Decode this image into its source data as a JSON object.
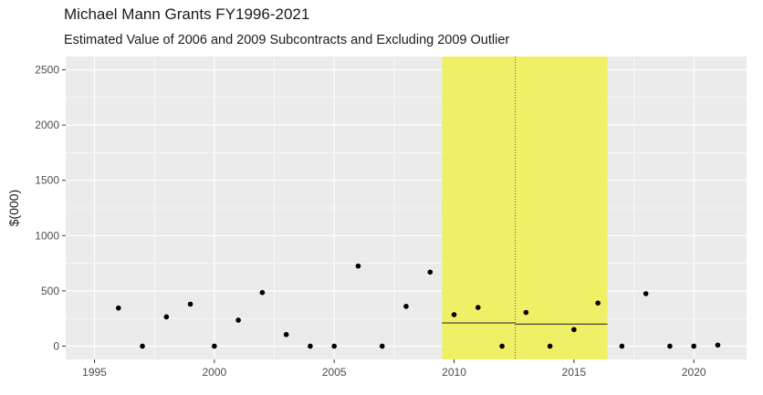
{
  "chart_data": {
    "type": "scatter",
    "title": "Michael Mann Grants FY1996-2021",
    "subtitle": "Estimated Value of 2006 and 2009 Subcontracts and Excluding 2009 Outlier",
    "xlabel": "",
    "ylabel": "$(000)",
    "xlim": [
      1993.8,
      2022.2
    ],
    "ylim": [
      -120,
      2620
    ],
    "x_ticks": [
      1995,
      2000,
      2005,
      2010,
      2015,
      2020
    ],
    "y_ticks": [
      0,
      500,
      1000,
      1500,
      2000,
      2500
    ],
    "grid": true,
    "points": [
      {
        "x": 1996,
        "y": 345
      },
      {
        "x": 1997,
        "y": 0
      },
      {
        "x": 1998,
        "y": 265
      },
      {
        "x": 1999,
        "y": 380
      },
      {
        "x": 2000,
        "y": 0
      },
      {
        "x": 2001,
        "y": 235
      },
      {
        "x": 2002,
        "y": 485
      },
      {
        "x": 2003,
        "y": 105
      },
      {
        "x": 2004,
        "y": 0
      },
      {
        "x": 2005,
        "y": 0
      },
      {
        "x": 2006,
        "y": 725
      },
      {
        "x": 2007,
        "y": 0
      },
      {
        "x": 2008,
        "y": 360
      },
      {
        "x": 2009,
        "y": 670
      },
      {
        "x": 2010,
        "y": 285
      },
      {
        "x": 2011,
        "y": 350
      },
      {
        "x": 2012,
        "y": 0
      },
      {
        "x": 2013,
        "y": 305
      },
      {
        "x": 2014,
        "y": 0
      },
      {
        "x": 2015,
        "y": 150
      },
      {
        "x": 2016,
        "y": 390
      },
      {
        "x": 2017,
        "y": 0
      },
      {
        "x": 2018,
        "y": 475
      },
      {
        "x": 2019,
        "y": 0
      },
      {
        "x": 2020,
        "y": 0
      },
      {
        "x": 2021,
        "y": 10
      }
    ],
    "highlight_band": {
      "x_start": 2009.5,
      "x_end": 2016.4,
      "color": "#f0f060"
    },
    "divider_line": {
      "x": 2012.55,
      "style": "dotted"
    },
    "segments": [
      {
        "x_start": 2009.5,
        "x_end": 2012.55,
        "y": 210
      },
      {
        "x_start": 2012.55,
        "x_end": 2016.4,
        "y": 200
      }
    ],
    "colors": {
      "panel_background": "#ebebeb",
      "grid": "#ffffff",
      "point": "#000000",
      "highlight": "#f0f060"
    }
  }
}
